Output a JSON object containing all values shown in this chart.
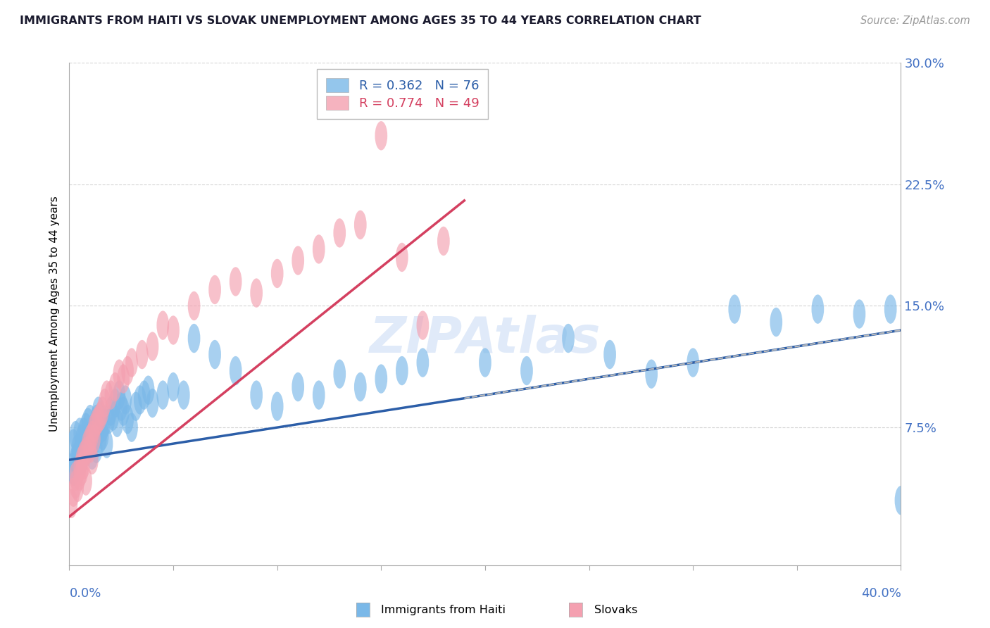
{
  "title": "IMMIGRANTS FROM HAITI VS SLOVAK UNEMPLOYMENT AMONG AGES 35 TO 44 YEARS CORRELATION CHART",
  "source": "Source: ZipAtlas.com",
  "ylabel": "Unemployment Among Ages 35 to 44 years",
  "xmin": 0.0,
  "xmax": 0.4,
  "ymin": -0.01,
  "ymax": 0.3,
  "yticks": [
    0.075,
    0.15,
    0.225,
    0.3
  ],
  "ytick_labels": [
    "7.5%",
    "15.0%",
    "22.5%",
    "30.0%"
  ],
  "haiti_R": 0.362,
  "haiti_N": 76,
  "slovak_R": 0.774,
  "slovak_N": 49,
  "haiti_color": "#7ab8e8",
  "slovak_color": "#f4a0b0",
  "haiti_line_color": "#2c5ea8",
  "slovak_line_color": "#d44060",
  "haiti_line_dash_color": "#aaaaaa",
  "haiti_line_start": 0.0,
  "haiti_line_end": 0.4,
  "haiti_line_y_start": 0.055,
  "haiti_line_y_end": 0.135,
  "slovak_line_start": 0.0,
  "slovak_line_end": 0.19,
  "slovak_line_y_start": 0.02,
  "slovak_line_y_end": 0.215,
  "haiti_scatter_x": [
    0.001,
    0.002,
    0.002,
    0.003,
    0.003,
    0.004,
    0.004,
    0.005,
    0.005,
    0.006,
    0.006,
    0.007,
    0.007,
    0.008,
    0.008,
    0.009,
    0.009,
    0.01,
    0.01,
    0.011,
    0.011,
    0.012,
    0.012,
    0.013,
    0.013,
    0.014,
    0.014,
    0.015,
    0.015,
    0.016,
    0.016,
    0.017,
    0.018,
    0.019,
    0.02,
    0.021,
    0.022,
    0.023,
    0.024,
    0.025,
    0.026,
    0.027,
    0.028,
    0.03,
    0.032,
    0.034,
    0.036,
    0.038,
    0.04,
    0.045,
    0.05,
    0.055,
    0.06,
    0.07,
    0.08,
    0.09,
    0.1,
    0.11,
    0.12,
    0.13,
    0.14,
    0.15,
    0.16,
    0.17,
    0.2,
    0.22,
    0.24,
    0.26,
    0.28,
    0.3,
    0.32,
    0.34,
    0.36,
    0.38,
    0.395,
    0.4
  ],
  "haiti_scatter_y": [
    0.05,
    0.048,
    0.065,
    0.055,
    0.07,
    0.058,
    0.062,
    0.06,
    0.072,
    0.068,
    0.055,
    0.072,
    0.065,
    0.06,
    0.075,
    0.062,
    0.078,
    0.065,
    0.08,
    0.07,
    0.058,
    0.068,
    0.075,
    0.062,
    0.08,
    0.072,
    0.085,
    0.068,
    0.082,
    0.075,
    0.07,
    0.078,
    0.065,
    0.08,
    0.085,
    0.082,
    0.09,
    0.078,
    0.095,
    0.088,
    0.085,
    0.092,
    0.08,
    0.075,
    0.088,
    0.092,
    0.095,
    0.098,
    0.09,
    0.095,
    0.1,
    0.095,
    0.13,
    0.12,
    0.11,
    0.095,
    0.088,
    0.1,
    0.095,
    0.108,
    0.1,
    0.105,
    0.11,
    0.115,
    0.115,
    0.11,
    0.13,
    0.12,
    0.108,
    0.115,
    0.148,
    0.14,
    0.148,
    0.145,
    0.148,
    0.03
  ],
  "slovak_scatter_x": [
    0.001,
    0.002,
    0.003,
    0.003,
    0.004,
    0.005,
    0.005,
    0.006,
    0.006,
    0.007,
    0.007,
    0.008,
    0.008,
    0.009,
    0.01,
    0.01,
    0.011,
    0.011,
    0.012,
    0.012,
    0.013,
    0.014,
    0.015,
    0.016,
    0.017,
    0.018,
    0.02,
    0.022,
    0.024,
    0.026,
    0.028,
    0.03,
    0.035,
    0.04,
    0.045,
    0.05,
    0.06,
    0.07,
    0.08,
    0.09,
    0.1,
    0.11,
    0.12,
    0.13,
    0.14,
    0.15,
    0.16,
    0.17,
    0.18
  ],
  "slovak_scatter_y": [
    0.028,
    0.035,
    0.04,
    0.045,
    0.038,
    0.05,
    0.045,
    0.055,
    0.048,
    0.058,
    0.052,
    0.06,
    0.042,
    0.065,
    0.068,
    0.062,
    0.07,
    0.055,
    0.075,
    0.068,
    0.078,
    0.08,
    0.082,
    0.085,
    0.09,
    0.095,
    0.095,
    0.1,
    0.108,
    0.105,
    0.11,
    0.115,
    0.12,
    0.125,
    0.138,
    0.135,
    0.15,
    0.16,
    0.165,
    0.158,
    0.17,
    0.178,
    0.185,
    0.195,
    0.2,
    0.255,
    0.18,
    0.138,
    0.19
  ],
  "watermark": "ZIPAtlas",
  "background_color": "#ffffff",
  "grid_color": "#d0d0d0"
}
